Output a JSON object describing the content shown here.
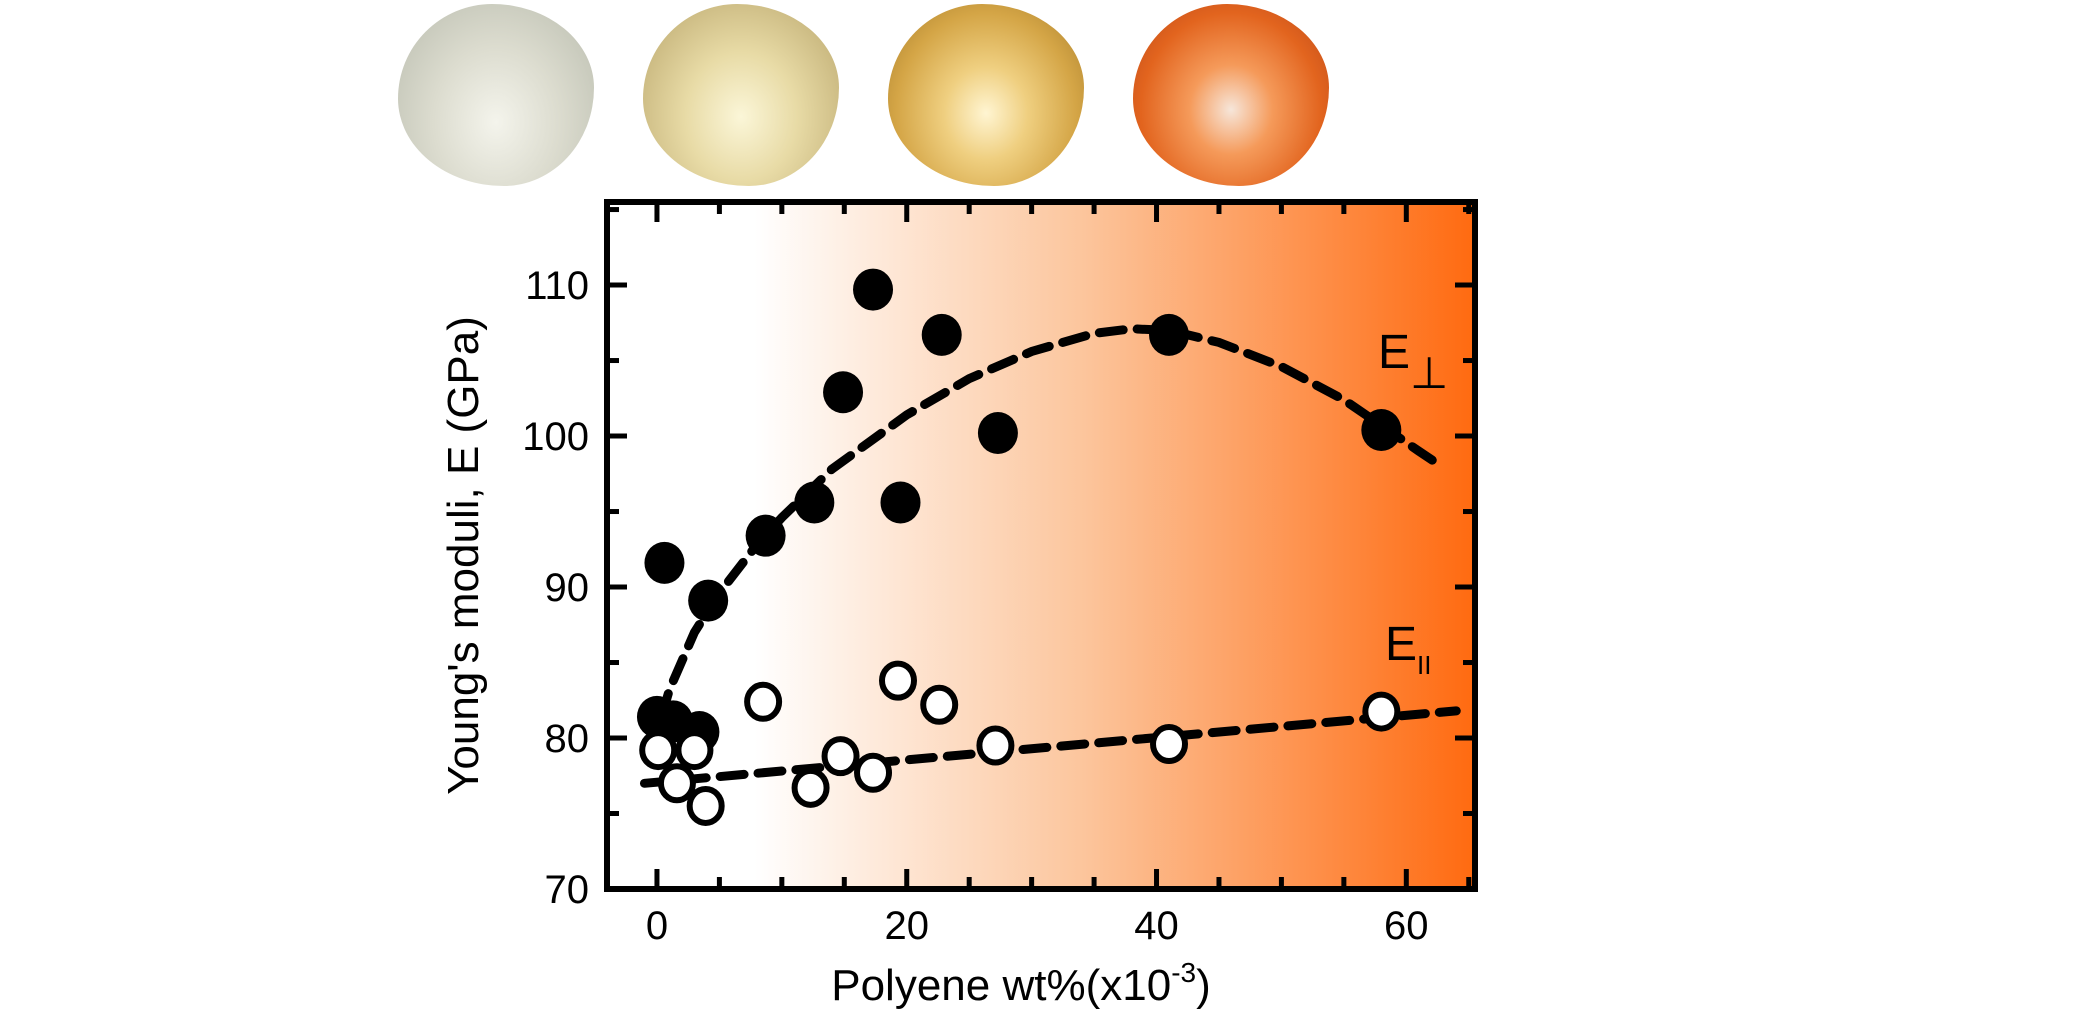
{
  "chart_data": {
    "type": "scatter",
    "title": "",
    "xlabel": "Polyene wt%(x10",
    "xlabel_exponent": "-3",
    "xlabel_close": ")",
    "ylabel": "Young's moduli, E (GPa)",
    "xlim": [
      -4,
      65.5
    ],
    "ylim": [
      70,
      115.5
    ],
    "x_ticks": [
      0,
      20,
      40,
      60
    ],
    "y_ticks": [
      70,
      80,
      90,
      100,
      110
    ],
    "x_minor_step": 5,
    "y_minor_step": 5,
    "grid": false,
    "background_gradient": [
      "#ffffff",
      "#ff6a10"
    ],
    "series": [
      {
        "name": "E⊥",
        "label_main": "E",
        "label_sub": "⊥",
        "marker": "filled-circle",
        "x": [
          0.0,
          0.6,
          1.3,
          3.4,
          4.1,
          8.7,
          12.6,
          14.9,
          17.3,
          19.5,
          22.8,
          27.3,
          41.0,
          58.0
        ],
        "y": [
          81.4,
          91.6,
          81.1,
          80.4,
          89.1,
          93.4,
          95.6,
          102.9,
          109.7,
          95.6,
          106.7,
          100.2,
          106.7,
          100.4
        ],
        "fit": {
          "style": "dashed",
          "x": [
            -0.5,
            1,
            3,
            5,
            8,
            10,
            14,
            20,
            25,
            30,
            35,
            38,
            41,
            45,
            50,
            55,
            58,
            61,
            63
          ],
          "y": [
            79.0,
            83.2,
            87.0,
            89.6,
            92.8,
            94.6,
            97.8,
            101.4,
            103.8,
            105.6,
            106.8,
            107.1,
            107.0,
            106.2,
            104.6,
            102.4,
            100.7,
            99.0,
            97.9
          ]
        }
      },
      {
        "name": "E∥",
        "label_main": "E",
        "label_sub": "II",
        "marker": "open-circle",
        "x": [
          0.1,
          1.6,
          3.0,
          3.9,
          8.5,
          12.3,
          14.7,
          17.3,
          19.3,
          22.6,
          27.1,
          41.0,
          58.0
        ],
        "y": [
          79.2,
          77.0,
          79.2,
          75.5,
          82.4,
          76.7,
          78.8,
          77.7,
          83.8,
          82.2,
          79.5,
          79.6,
          81.75
        ],
        "fit": {
          "style": "dashed",
          "x": [
            -1,
            64
          ],
          "y": [
            77.0,
            81.8
          ]
        }
      }
    ],
    "legend": "inline-right"
  },
  "photos": [
    "sample-colorless",
    "sample-pale-yellow",
    "sample-golden",
    "sample-orange"
  ]
}
